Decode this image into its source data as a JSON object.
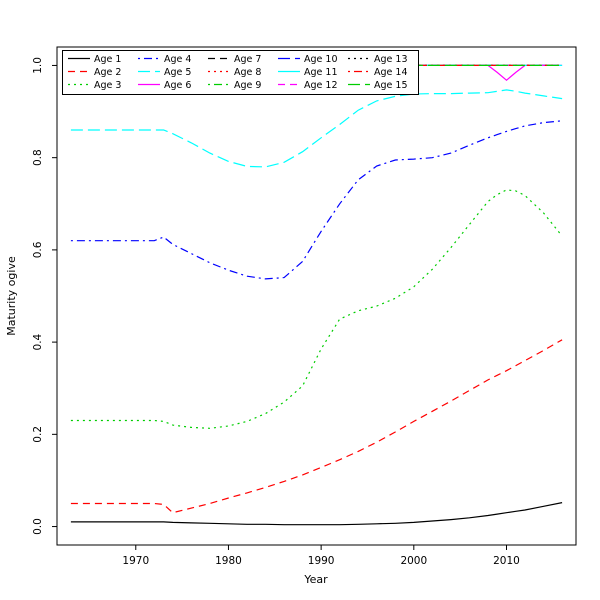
{
  "figure": {
    "background": "#ffffff",
    "title": ""
  },
  "chart_data": {
    "type": "line",
    "title": "",
    "xlabel": "Year",
    "ylabel": "Maturity ogive",
    "xlim": [
      1961.5,
      2017.5
    ],
    "ylim": [
      -0.04,
      1.04
    ],
    "x_ticks": [
      1970,
      1980,
      1990,
      2000,
      2010
    ],
    "y_ticks": [
      0.0,
      0.2,
      0.4,
      0.6,
      0.8,
      1.0
    ],
    "y_tick_labels": [
      "0.0",
      "0.2",
      "0.4",
      "0.6",
      "0.8",
      "1.0"
    ],
    "grid": "off",
    "legend": {
      "position": "top-left",
      "columns": 5,
      "rows": 3
    },
    "x": [
      1963,
      1967,
      1970,
      1972,
      1973,
      1974,
      1976,
      1978,
      1980,
      1982,
      1984,
      1986,
      1988,
      1990,
      1992,
      1994,
      1996,
      1998,
      2000,
      2002,
      2004,
      2006,
      2008,
      2009,
      2010,
      2011,
      2012,
      2014,
      2016
    ],
    "series": [
      {
        "name": "Age 1",
        "color": "#000000",
        "lty": "solid",
        "dash": "",
        "values": [
          0.01,
          0.01,
          0.01,
          0.01,
          0.01,
          0.009,
          0.008,
          0.007,
          0.006,
          0.005,
          0.005,
          0.004,
          0.004,
          0.004,
          0.004,
          0.005,
          0.006,
          0.007,
          0.009,
          0.012,
          0.015,
          0.019,
          0.024,
          0.027,
          0.03,
          0.033,
          0.036,
          0.044,
          0.052
        ]
      },
      {
        "name": "Age 2",
        "color": "#FF0000",
        "lty": "dashed",
        "dash": "7,5",
        "values": [
          0.05,
          0.05,
          0.05,
          0.05,
          0.048,
          0.03,
          0.04,
          0.05,
          0.062,
          0.073,
          0.085,
          0.098,
          0.112,
          0.128,
          0.145,
          0.163,
          0.183,
          0.205,
          0.228,
          0.25,
          0.272,
          0.295,
          0.318,
          0.328,
          0.338,
          0.349,
          0.36,
          0.382,
          0.405
        ]
      },
      {
        "name": "Age 3",
        "color": "#00CD00",
        "lty": "dotted",
        "dash": "2,4",
        "values": [
          0.23,
          0.23,
          0.23,
          0.23,
          0.228,
          0.22,
          0.215,
          0.213,
          0.218,
          0.228,
          0.245,
          0.27,
          0.305,
          0.385,
          0.45,
          0.468,
          0.478,
          0.495,
          0.52,
          0.558,
          0.605,
          0.655,
          0.705,
          0.72,
          0.73,
          0.728,
          0.718,
          0.68,
          0.63
        ]
      },
      {
        "name": "Age 4",
        "color": "#0000FF",
        "lty": "dotdash",
        "dash": "2,4,8,4",
        "values": [
          0.62,
          0.62,
          0.62,
          0.62,
          0.628,
          0.612,
          0.592,
          0.572,
          0.556,
          0.543,
          0.537,
          0.54,
          0.575,
          0.64,
          0.7,
          0.752,
          0.782,
          0.795,
          0.797,
          0.8,
          0.81,
          0.827,
          0.843,
          0.85,
          0.857,
          0.863,
          0.869,
          0.876,
          0.88
        ]
      },
      {
        "name": "Age 5",
        "color": "#00FFFF",
        "lty": "longdash",
        "dash": "12,5",
        "values": [
          0.86,
          0.86,
          0.86,
          0.86,
          0.86,
          0.852,
          0.832,
          0.81,
          0.792,
          0.781,
          0.78,
          0.79,
          0.813,
          0.843,
          0.872,
          0.903,
          0.923,
          0.933,
          0.938,
          0.939,
          0.939,
          0.94,
          0.941,
          0.944,
          0.947,
          0.944,
          0.94,
          0.934,
          0.928
        ]
      },
      {
        "name": "Age 6",
        "color": "#FF00FF",
        "lty": "solid",
        "dash": "",
        "values": [
          1.0,
          1.0,
          1.0,
          1.0,
          1.0,
          1.0,
          1.0,
          1.0,
          1.0,
          1.0,
          1.0,
          1.0,
          1.0,
          1.0,
          1.0,
          1.0,
          1.0,
          1.0,
          1.0,
          1.0,
          1.0,
          1.0,
          1.0,
          0.985,
          0.968,
          0.985,
          1.0,
          1.0,
          1.0
        ]
      },
      {
        "name": "Age 7",
        "color": "#000000",
        "lty": "dashed",
        "dash": "7,5",
        "constant": 1.0
      },
      {
        "name": "Age 8",
        "color": "#FF0000",
        "lty": "dotted",
        "dash": "2,4",
        "constant": 1.0
      },
      {
        "name": "Age 9",
        "color": "#00CD00",
        "lty": "dotdash",
        "dash": "2,4,8,4",
        "constant": 1.0
      },
      {
        "name": "Age 10",
        "color": "#0000FF",
        "lty": "longdash",
        "dash": "12,5",
        "constant": 1.0
      },
      {
        "name": "Age 11",
        "color": "#00FFFF",
        "lty": "solid",
        "dash": "",
        "constant": 1.0
      },
      {
        "name": "Age 12",
        "color": "#FF00FF",
        "lty": "dashed",
        "dash": "7,5",
        "constant": 1.0
      },
      {
        "name": "Age 13",
        "color": "#000000",
        "lty": "dotted",
        "dash": "2,4",
        "constant": 1.0
      },
      {
        "name": "Age 14",
        "color": "#FF0000",
        "lty": "dotdash",
        "dash": "2,4,8,4",
        "constant": 1.0
      },
      {
        "name": "Age 15",
        "color": "#00CD00",
        "lty": "longdash",
        "dash": "12,5",
        "constant": 1.0
      }
    ]
  }
}
